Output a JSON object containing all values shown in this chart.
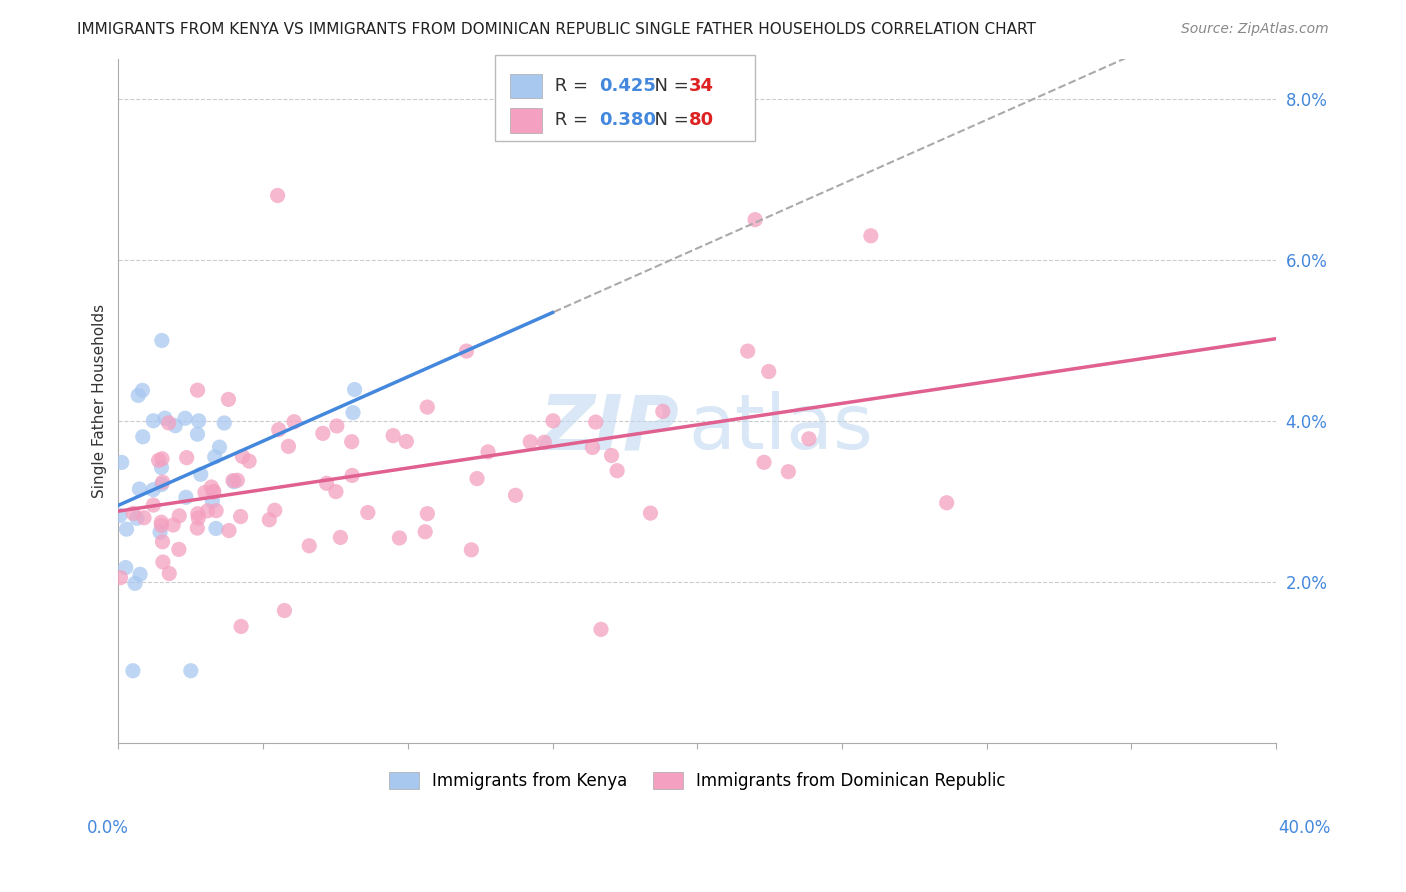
{
  "title": "IMMIGRANTS FROM KENYA VS IMMIGRANTS FROM DOMINICAN REPUBLIC SINGLE FATHER HOUSEHOLDS CORRELATION CHART",
  "source": "Source: ZipAtlas.com",
  "ylabel": "Single Father Households",
  "kenya_R": 0.425,
  "kenya_N": 34,
  "dr_R": 0.38,
  "dr_N": 80,
  "kenya_color": "#a8c8f0",
  "dr_color": "#f4a0c0",
  "kenya_line_color": "#4488dd",
  "dr_line_color": "#e06090",
  "dash_color": "#aaaaaa",
  "xlim": [
    0.0,
    40.0
  ],
  "ylim": [
    0.0,
    8.5
  ],
  "ytick_vals": [
    2.0,
    4.0,
    6.0,
    8.0
  ],
  "ytick_labels": [
    "2.0%",
    "4.0%",
    "6.0%",
    "8.0%"
  ],
  "grid_color": "#cccccc",
  "legend_N_color": "#dd2222",
  "legend_R_color": "#4488dd",
  "title_color": "#222222",
  "source_color": "#888888",
  "ylabel_color": "#333333",
  "axis_label_color": "#4488dd",
  "watermark_zip_color": "#c0d8f0",
  "watermark_atlas_color": "#c0d8f0"
}
